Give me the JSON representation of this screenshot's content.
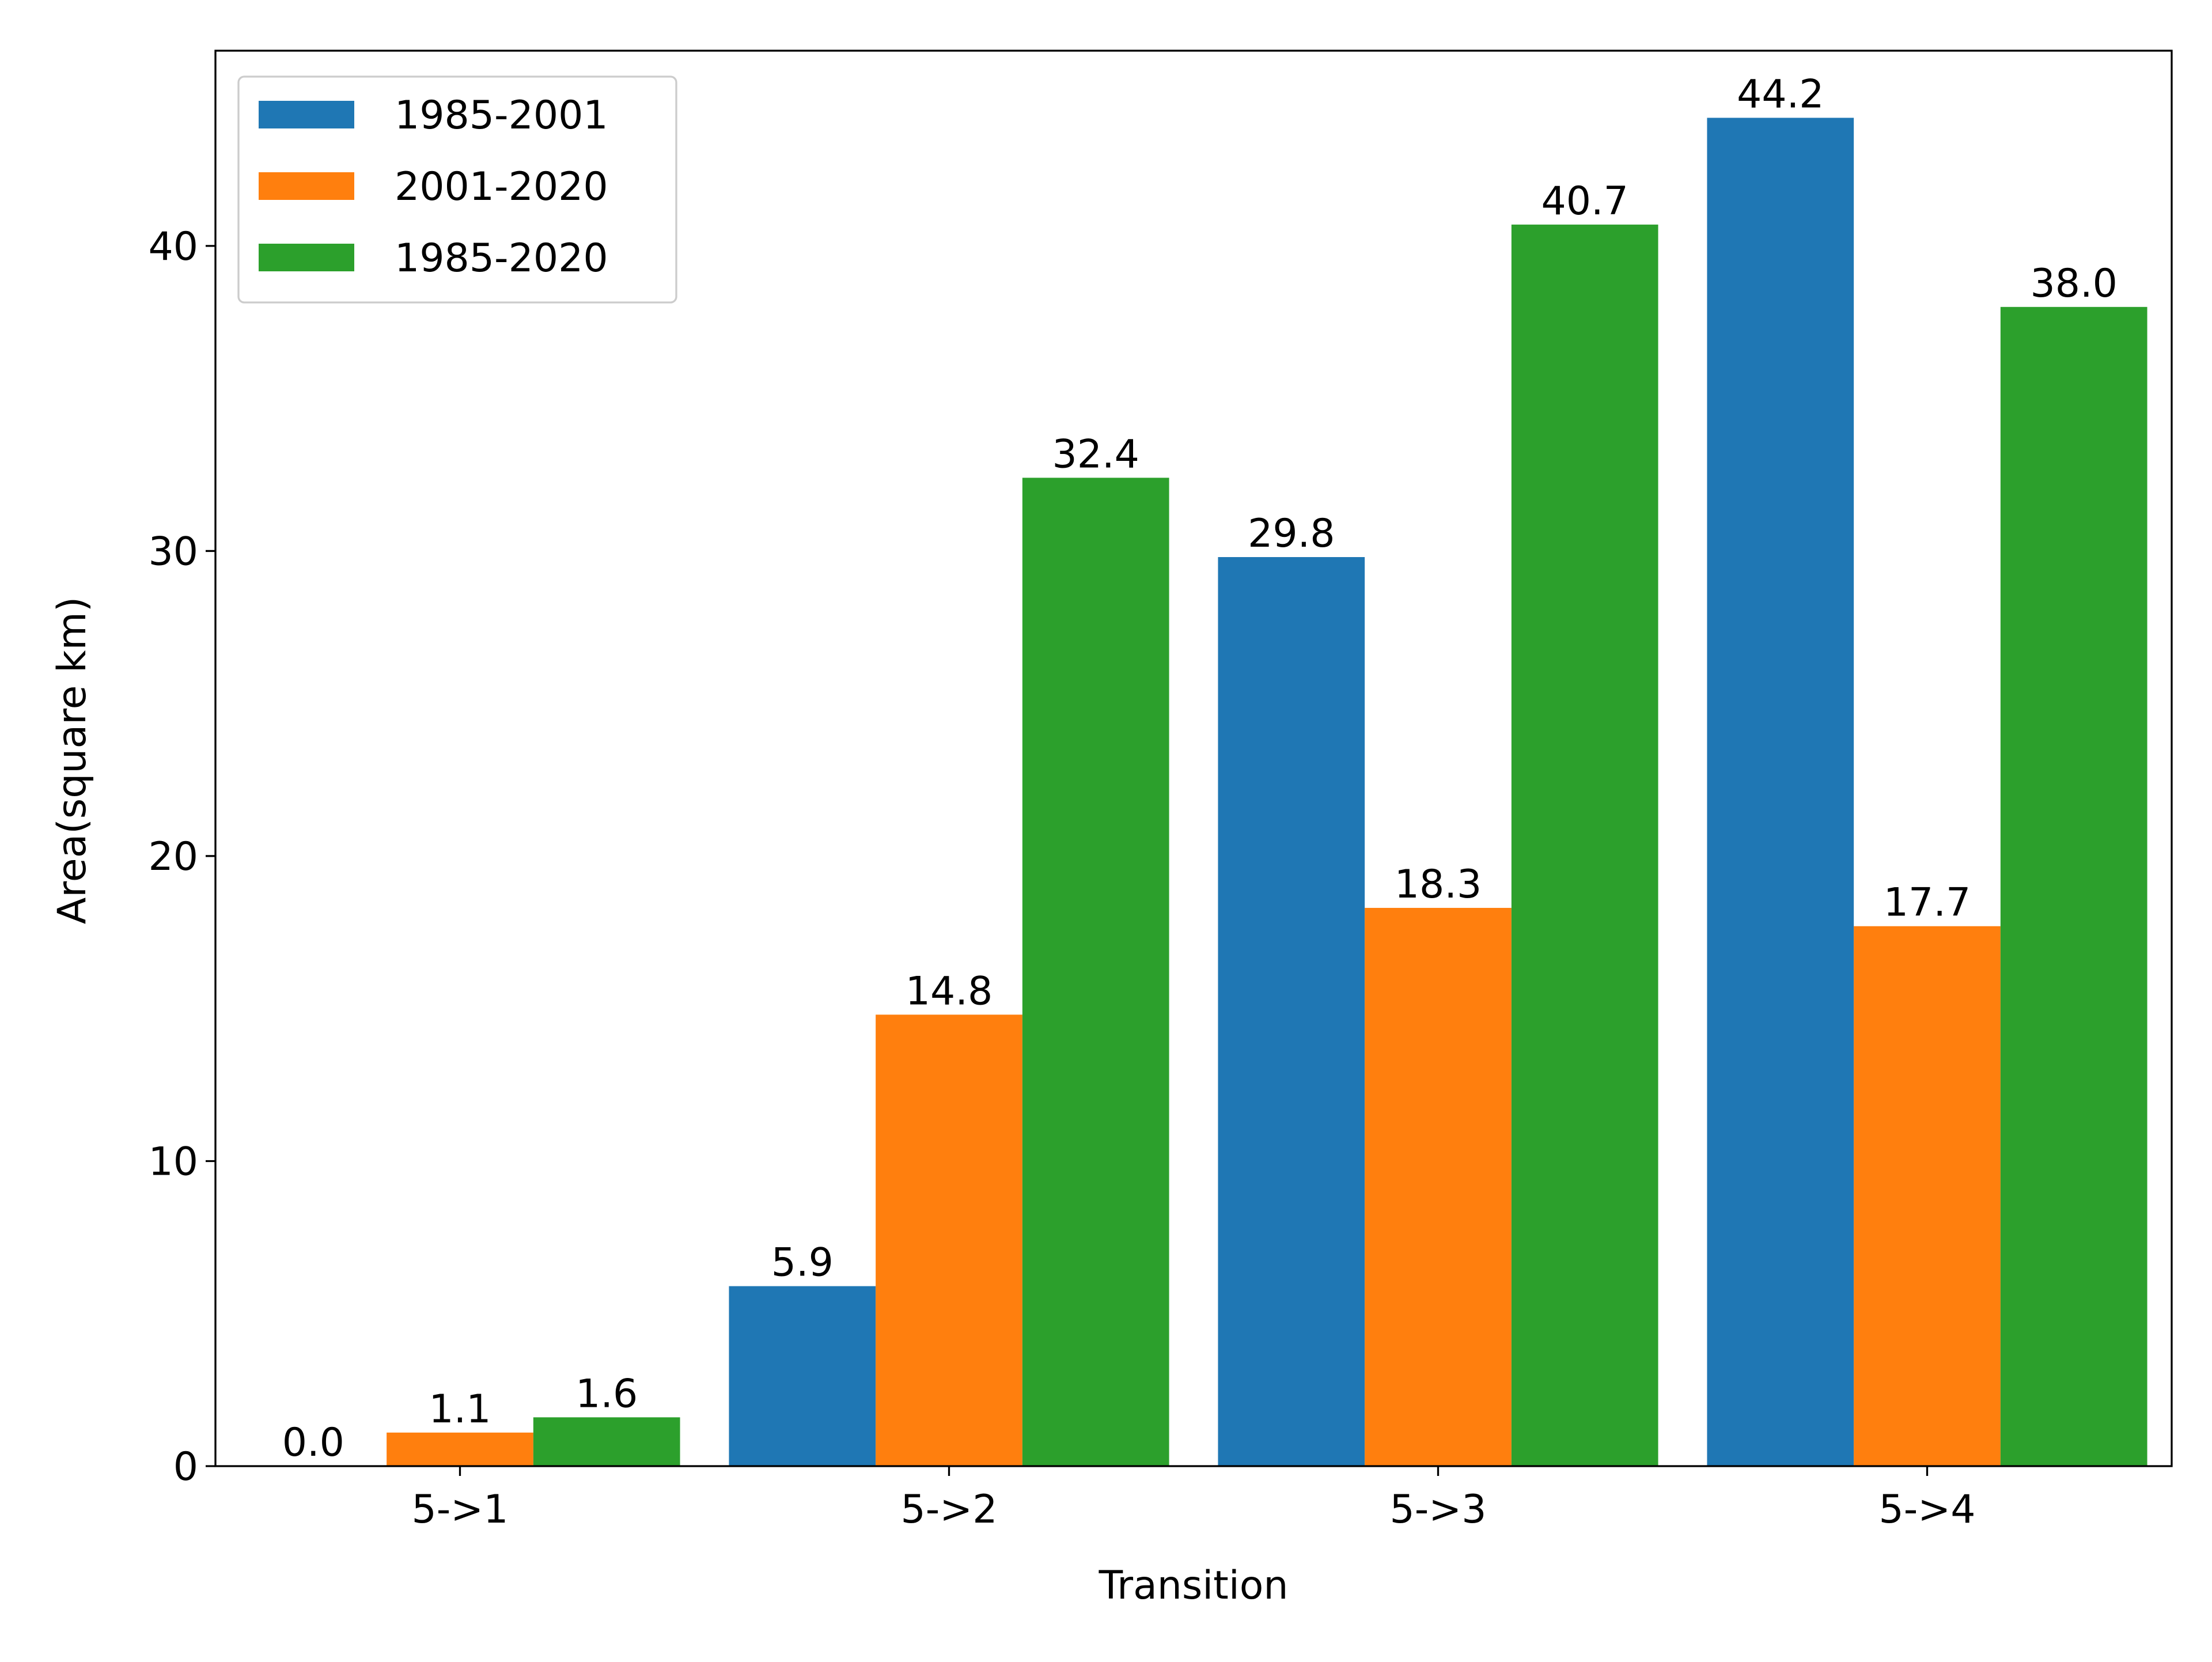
{
  "chart_data": {
    "type": "bar",
    "title": "",
    "xlabel": "Transition",
    "ylabel": "Area(square km)",
    "categories": [
      "5->1",
      "5->2",
      "5->3",
      "5->4"
    ],
    "series": [
      {
        "name": "1985-2001",
        "color": "#1f77b4",
        "values": [
          0.0,
          5.9,
          29.8,
          44.2
        ]
      },
      {
        "name": "2001-2020",
        "color": "#ff7f0e",
        "values": [
          1.1,
          14.8,
          18.3,
          17.7
        ]
      },
      {
        "name": "1985-2020",
        "color": "#2ca02c",
        "values": [
          1.6,
          32.4,
          40.7,
          38.0
        ]
      }
    ],
    "ylim": [
      0,
      46.4
    ],
    "yticks": [
      0,
      10,
      20,
      30,
      40
    ],
    "grid": false,
    "legend_position": "top-left",
    "data_labels": true
  }
}
